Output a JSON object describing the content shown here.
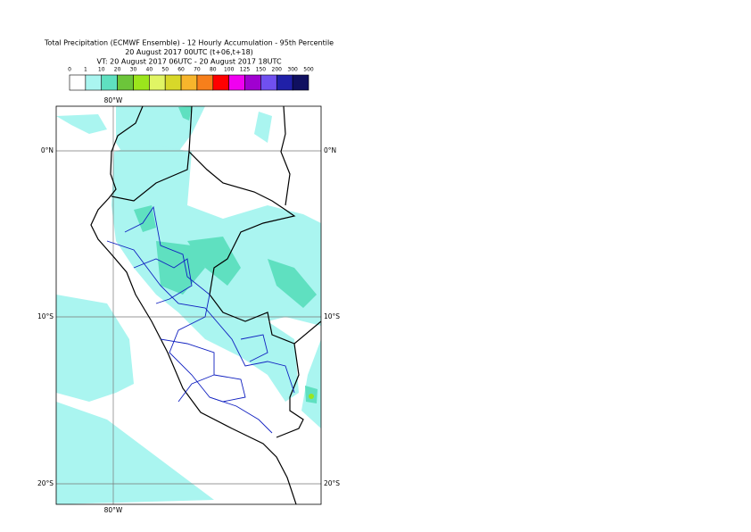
{
  "header": {
    "title_lines": [
      "Total Precipitation (ECMWF Ensemble) - 12 Hourly Accumulation - 95th Percentile",
      "20 August 2017 00UTC (t+06,t+18)",
      "VT: 20 August 2017 06UTC - 20 August 2017 18UTC"
    ]
  },
  "legend": {
    "labels": [
      "0",
      "1",
      "10",
      "20",
      "30",
      "40",
      "50",
      "60",
      "70",
      "80",
      "100",
      "125",
      "150",
      "200",
      "300",
      "500"
    ],
    "colors": [
      "#ffffff",
      "#aaf5f0",
      "#5fe0c0",
      "#6cc53a",
      "#9be51c",
      "#e1f564",
      "#d8d829",
      "#f7b52c",
      "#f77f1b",
      "#ff0000",
      "#f000f0",
      "#a000d0",
      "#7050f0",
      "#2020a8",
      "#101060"
    ]
  },
  "map": {
    "lon_labels": [
      "80°W"
    ],
    "lat_labels": [
      "0°N",
      "10°S",
      "20°S"
    ]
  }
}
